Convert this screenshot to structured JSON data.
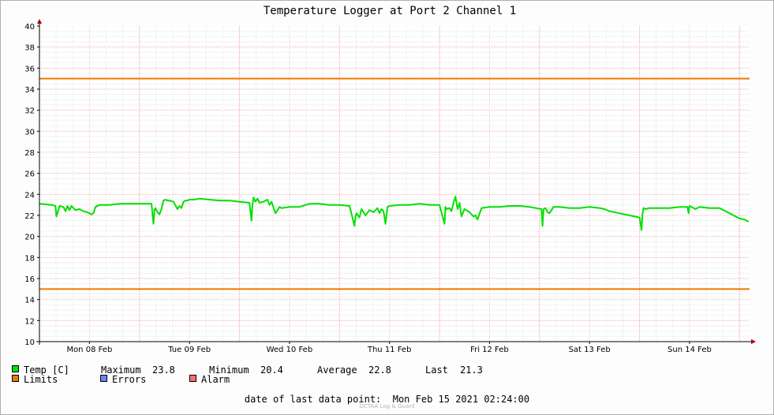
{
  "chart_data": {
    "type": "line",
    "title": "Temperature Logger at Port 2 Channel 1",
    "xlabel": "",
    "ylabel": "",
    "ylim": [
      10,
      40
    ],
    "y_ticks": [
      10,
      12,
      14,
      16,
      18,
      20,
      22,
      24,
      26,
      28,
      30,
      32,
      34,
      36,
      38,
      40
    ],
    "x_tick_labels": [
      "Mon 08 Feb",
      "Tue 09 Feb",
      "Wed 10 Feb",
      "Thu 11 Feb",
      "Fri 12 Feb",
      "Sat 13 Feb",
      "Sun 14 Feb"
    ],
    "x_range_days": [
      0,
      7.1
    ],
    "grid": true,
    "limits": {
      "upper": 35,
      "lower": 15,
      "color": "#f07800"
    },
    "series": [
      {
        "name": "Temp [C]",
        "color": "#00e000",
        "x_days": [
          0,
          0.12,
          0.16,
          0.17,
          0.18,
          0.2,
          0.24,
          0.26,
          0.28,
          0.3,
          0.32,
          0.36,
          0.4,
          0.44,
          0.48,
          0.52,
          0.54,
          0.56,
          0.6,
          0.7,
          0.8,
          0.95,
          1.05,
          1.12,
          1.14,
          1.15,
          1.16,
          1.18,
          1.2,
          1.22,
          1.24,
          1.26,
          1.28,
          1.3,
          1.34,
          1.38,
          1.4,
          1.42,
          1.44,
          1.46,
          1.48,
          1.5,
          1.55,
          1.6,
          1.7,
          1.8,
          1.9,
          2.0,
          2.1,
          2.12,
          2.13,
          2.14,
          2.16,
          2.18,
          2.2,
          2.24,
          2.28,
          2.3,
          2.32,
          2.36,
          2.4,
          2.42,
          2.5,
          2.6,
          2.7,
          2.8,
          2.9,
          3.0,
          3.1,
          3.15,
          3.16,
          3.17,
          3.2,
          3.22,
          3.26,
          3.3,
          3.34,
          3.38,
          3.4,
          3.42,
          3.44,
          3.46,
          3.48,
          3.5,
          3.6,
          3.7,
          3.8,
          3.9,
          4.0,
          4.05,
          4.06,
          4.07,
          4.1,
          4.12,
          4.14,
          4.16,
          4.18,
          4.2,
          4.22,
          4.25,
          4.3,
          4.34,
          4.36,
          4.38,
          4.42,
          4.5,
          4.6,
          4.7,
          4.8,
          4.9,
          5.02,
          5.03,
          5.04,
          5.06,
          5.08,
          5.1,
          5.14,
          5.16,
          5.18,
          5.2,
          5.3,
          5.4,
          5.5,
          5.6,
          5.65,
          5.7,
          5.8,
          5.9,
          6.0,
          6.02,
          6.03,
          6.04,
          6.06,
          6.1,
          6.2,
          6.3,
          6.4,
          6.48,
          6.49,
          6.5,
          6.52,
          6.56,
          6.6,
          6.7,
          6.8,
          6.9,
          7.0,
          7.05,
          7.09
        ],
        "y_values": [
          23.1,
          23.0,
          22.9,
          21.9,
          22.2,
          22.9,
          22.8,
          22.4,
          22.9,
          22.5,
          22.9,
          22.5,
          22.6,
          22.4,
          22.3,
          22.1,
          22.2,
          22.8,
          23.0,
          23.0,
          23.1,
          23.1,
          23.1,
          23.1,
          21.2,
          22.5,
          22.7,
          22.3,
          22.1,
          22.6,
          23.4,
          23.5,
          23.4,
          23.4,
          23.3,
          22.6,
          22.9,
          22.7,
          23.3,
          23.4,
          23.4,
          23.5,
          23.5,
          23.6,
          23.5,
          23.4,
          23.4,
          23.3,
          23.2,
          21.5,
          23.0,
          23.7,
          23.3,
          23.6,
          23.2,
          23.3,
          23.5,
          23.0,
          23.3,
          22.2,
          22.8,
          22.7,
          22.8,
          22.8,
          23.1,
          23.1,
          23.0,
          23.0,
          22.9,
          21.0,
          21.9,
          22.2,
          21.8,
          22.6,
          22.0,
          22.5,
          22.3,
          22.7,
          22.2,
          22.6,
          22.4,
          21.2,
          22.8,
          22.9,
          23.0,
          23.0,
          23.1,
          23.0,
          23.0,
          21.2,
          22.8,
          22.6,
          22.7,
          22.4,
          23.2,
          23.8,
          22.6,
          23.2,
          21.9,
          22.6,
          22.3,
          21.9,
          22.0,
          21.6,
          22.7,
          22.8,
          22.8,
          22.9,
          22.9,
          22.8,
          22.6,
          21.0,
          22.6,
          22.7,
          22.3,
          22.2,
          22.8,
          22.8,
          22.8,
          22.8,
          22.7,
          22.7,
          22.8,
          22.7,
          22.6,
          22.4,
          22.2,
          22.0,
          21.8,
          20.6,
          22.2,
          22.7,
          22.6,
          22.7,
          22.7,
          22.7,
          22.8,
          22.8,
          22.2,
          22.9,
          22.8,
          22.6,
          22.8,
          22.7,
          22.7,
          22.2,
          21.7,
          21.6,
          21.4
        ]
      }
    ]
  },
  "legend": {
    "temp_label": "Temp [C]",
    "max_label": "Maximum",
    "max_value": "23.8",
    "min_label": "Minimum",
    "min_value": "20.4",
    "avg_label": "Average",
    "avg_value": "22.8",
    "last_label": "Last",
    "last_value": "21.3",
    "limits_label": "Limits",
    "errors_label": "Errors",
    "alarm_label": "Alarm",
    "colors": {
      "temp": "#00e000",
      "limits": "#f07800",
      "errors": "#7080ff",
      "alarm": "#ff7070"
    }
  },
  "footer": {
    "last_point_label": "date of last data point:",
    "last_point_value": "Mon Feb 15 2021 02:24:00",
    "credit": "OCTAA Log & Guard"
  }
}
